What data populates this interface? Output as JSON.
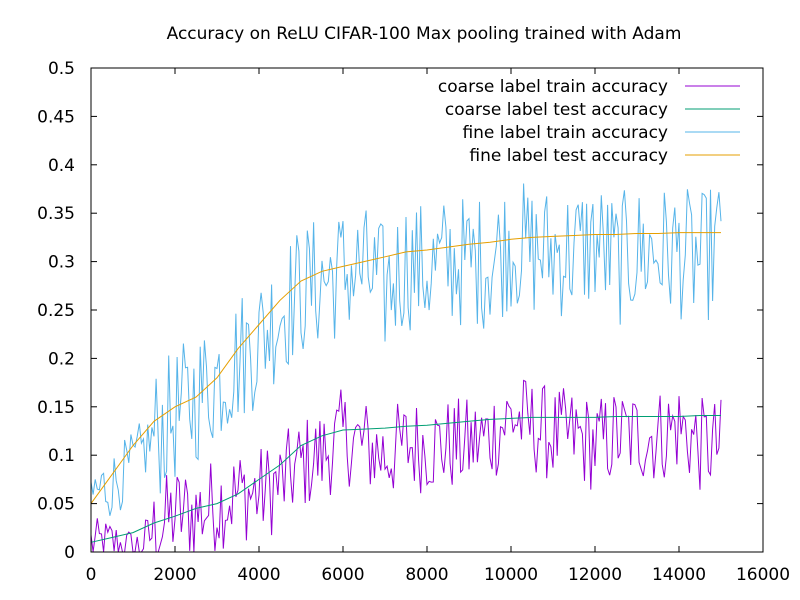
{
  "chart_data": {
    "type": "line",
    "title": "Accuracy on ReLU CIFAR-100 Max pooling trained with Adam",
    "xlabel": "",
    "ylabel": "",
    "xlim": [
      0,
      16000
    ],
    "ylim": [
      0,
      0.5
    ],
    "xticks": [
      0,
      2000,
      4000,
      6000,
      8000,
      10000,
      12000,
      14000,
      16000
    ],
    "yticks": [
      0,
      0.05,
      0.1,
      0.15,
      0.2,
      0.25,
      0.3,
      0.35,
      0.4,
      0.45,
      0.5
    ],
    "xtick_labels": [
      "0",
      "2000",
      "4000",
      "6000",
      "8000",
      "10000",
      "12000",
      "14000",
      "16000"
    ],
    "ytick_labels": [
      "0",
      "0.05",
      "0.1",
      "0.15",
      "0.2",
      "0.25",
      "0.3",
      "0.35",
      "0.4",
      "0.45",
      "0.5"
    ],
    "grid": false,
    "legend_position": "top-right",
    "series": [
      {
        "name": "coarse label train accuracy",
        "color": "#9400d3",
        "noisy": true,
        "x": [
          0,
          500,
          1000,
          1500,
          2000,
          2500,
          3000,
          3500,
          4000,
          4500,
          5000,
          5500,
          6000,
          6500,
          7000,
          7500,
          8000,
          8500,
          9000,
          9500,
          10000,
          10500,
          11000,
          11500,
          12000,
          12500,
          13000,
          13500,
          14000,
          14500,
          15000
        ],
        "values": [
          0.01,
          0.01,
          0.0,
          0.02,
          0.04,
          0.04,
          0.05,
          0.06,
          0.06,
          0.07,
          0.09,
          0.1,
          0.12,
          0.11,
          0.1,
          0.11,
          0.11,
          0.11,
          0.11,
          0.12,
          0.14,
          0.13,
          0.12,
          0.12,
          0.11,
          0.12,
          0.12,
          0.12,
          0.13,
          0.11,
          0.11
        ]
      },
      {
        "name": "coarse label test accuracy",
        "color": "#009e73",
        "noisy": false,
        "x": [
          0,
          500,
          1000,
          1500,
          2000,
          2500,
          3000,
          3500,
          4000,
          4500,
          5000,
          5500,
          6000,
          6500,
          7000,
          7500,
          8000,
          8500,
          9000,
          9500,
          10000,
          10500,
          11000,
          11500,
          12000,
          12500,
          13000,
          13500,
          14000,
          14500,
          15000
        ],
        "values": [
          0.01,
          0.015,
          0.02,
          0.03,
          0.037,
          0.045,
          0.05,
          0.06,
          0.075,
          0.09,
          0.11,
          0.12,
          0.126,
          0.127,
          0.128,
          0.13,
          0.131,
          0.133,
          0.135,
          0.137,
          0.138,
          0.139,
          0.139,
          0.139,
          0.139,
          0.14,
          0.14,
          0.14,
          0.14,
          0.141,
          0.141
        ]
      },
      {
        "name": "fine label train accuracy",
        "color": "#56b4e9",
        "noisy": true,
        "x": [
          0,
          500,
          1000,
          1500,
          2000,
          2500,
          3000,
          3500,
          4000,
          4500,
          5000,
          5500,
          6000,
          6500,
          7000,
          7500,
          8000,
          8500,
          9000,
          9500,
          10000,
          10500,
          11000,
          11500,
          12000,
          12500,
          13000,
          13500,
          14000,
          14500,
          15000
        ],
        "values": [
          0.06,
          0.07,
          0.09,
          0.12,
          0.14,
          0.16,
          0.18,
          0.2,
          0.22,
          0.25,
          0.27,
          0.28,
          0.29,
          0.29,
          0.27,
          0.3,
          0.29,
          0.3,
          0.3,
          0.3,
          0.32,
          0.31,
          0.31,
          0.31,
          0.32,
          0.3,
          0.31,
          0.31,
          0.31,
          0.3,
          0.32
        ]
      },
      {
        "name": "fine label test accuracy",
        "color": "#e69f00",
        "noisy": false,
        "x": [
          0,
          500,
          1000,
          1500,
          2000,
          2500,
          3000,
          3500,
          4000,
          4500,
          5000,
          5500,
          6000,
          6500,
          7000,
          7500,
          8000,
          8500,
          9000,
          9500,
          10000,
          10500,
          11000,
          11500,
          12000,
          12500,
          13000,
          13500,
          14000,
          14500,
          15000
        ],
        "values": [
          0.05,
          0.08,
          0.11,
          0.135,
          0.15,
          0.16,
          0.18,
          0.21,
          0.235,
          0.26,
          0.28,
          0.29,
          0.295,
          0.3,
          0.305,
          0.31,
          0.312,
          0.315,
          0.318,
          0.32,
          0.323,
          0.325,
          0.326,
          0.327,
          0.328,
          0.328,
          0.329,
          0.329,
          0.33,
          0.33,
          0.33
        ]
      }
    ]
  }
}
